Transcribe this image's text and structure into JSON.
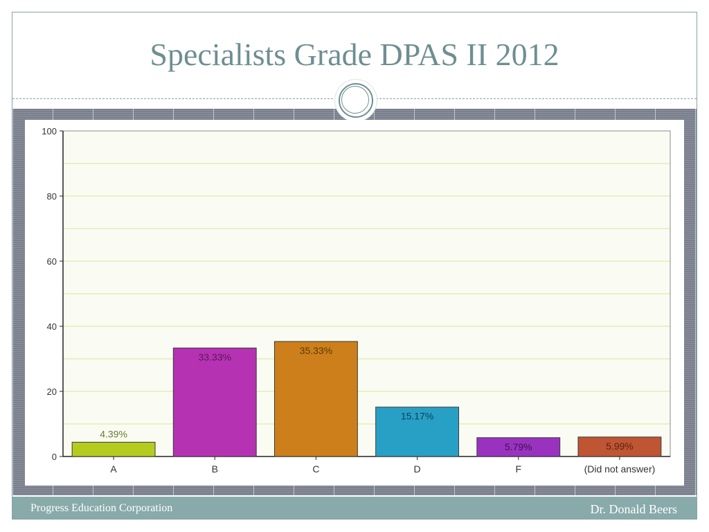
{
  "slide": {
    "title": "Specialists Grade DPAS II 2012",
    "footer_left": "Progress Education Corporation",
    "footer_right": "Dr. Donald Beers"
  },
  "chart_data": {
    "type": "bar",
    "categories": [
      "A",
      "B",
      "C",
      "D",
      "F",
      "(Did not answer)"
    ],
    "values": [
      4.39,
      33.33,
      35.33,
      15.17,
      5.79,
      5.99
    ],
    "data_labels": [
      "4.39%",
      "33.33%",
      "35.33%",
      "15.17%",
      "5.79%",
      "5.99%"
    ],
    "colors": [
      "#b5cc1e",
      "#b532b2",
      "#cc7f1a",
      "#28a0c6",
      "#9a32c0",
      "#bf5533"
    ],
    "label_colors": [
      "#6b7a2a",
      "#5a1658",
      "#5e3b08",
      "#0d3f52",
      "#3b1450",
      "#5a2414"
    ],
    "ylim": [
      0,
      100
    ],
    "yticks": [
      0,
      20,
      40,
      60,
      80,
      100
    ],
    "grid": true,
    "plot_background": "#fafcf3",
    "gridline_color": "#e4ecb8"
  }
}
